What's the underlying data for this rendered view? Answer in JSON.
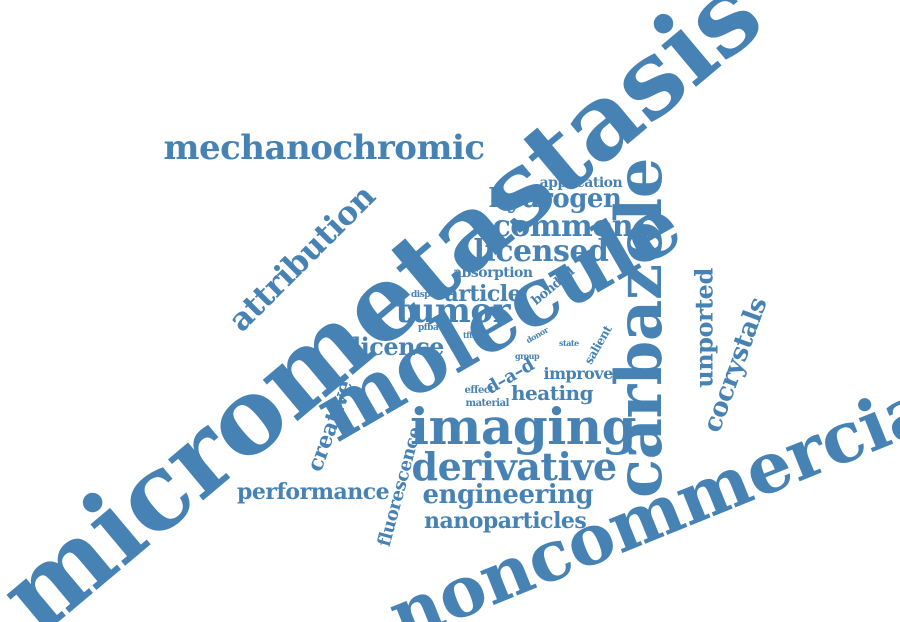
{
  "colors": {
    "word": "#4682b4",
    "background": "#ffffff"
  },
  "words": [
    {
      "key": "micrometastasis",
      "text": "micrometastasis"
    },
    {
      "key": "noncommercial",
      "text": "noncommercial"
    },
    {
      "key": "molecule",
      "text": "molecule"
    },
    {
      "key": "carbazole",
      "text": "carbazole"
    },
    {
      "key": "imaging",
      "text": "imaging"
    },
    {
      "key": "mechanochromic",
      "text": "mechanochromic"
    },
    {
      "key": "derivative",
      "text": "derivative"
    },
    {
      "key": "attribution",
      "text": "attribution"
    },
    {
      "key": "common",
      "text": "common"
    },
    {
      "key": "licensed",
      "text": "licensed"
    },
    {
      "key": "hydrogen",
      "text": "hydrogen"
    },
    {
      "key": "tumor",
      "text": "tumor"
    },
    {
      "key": "unported",
      "text": "unported"
    },
    {
      "key": "cocrystals",
      "text": "cocrystals"
    },
    {
      "key": "engineering",
      "text": "engineering"
    },
    {
      "key": "nanoparticles",
      "text": "nanoparticles"
    },
    {
      "key": "performance",
      "text": "performance"
    },
    {
      "key": "creative",
      "text": "creative"
    },
    {
      "key": "fluorescence",
      "text": "fluorescence"
    },
    {
      "key": "licence",
      "text": "licence"
    },
    {
      "key": "article",
      "text": "article"
    },
    {
      "key": "heating",
      "text": "heating"
    },
    {
      "key": "improve",
      "text": "improve"
    },
    {
      "key": "d_a_d",
      "text": "d–a–d"
    },
    {
      "key": "application",
      "text": "application"
    },
    {
      "key": "absorption",
      "text": "absorption"
    },
    {
      "key": "bonded",
      "text": "bonded"
    },
    {
      "key": "salient",
      "text": "salient"
    },
    {
      "key": "display",
      "text": "display"
    },
    {
      "key": "pfba",
      "text": "pfba"
    },
    {
      "key": "tfta",
      "text": "tfta"
    },
    {
      "key": "donor",
      "text": "donor"
    },
    {
      "key": "state",
      "text": "state"
    },
    {
      "key": "group",
      "text": "group"
    },
    {
      "key": "effect",
      "text": "effect"
    },
    {
      "key": "material",
      "text": "material"
    }
  ]
}
